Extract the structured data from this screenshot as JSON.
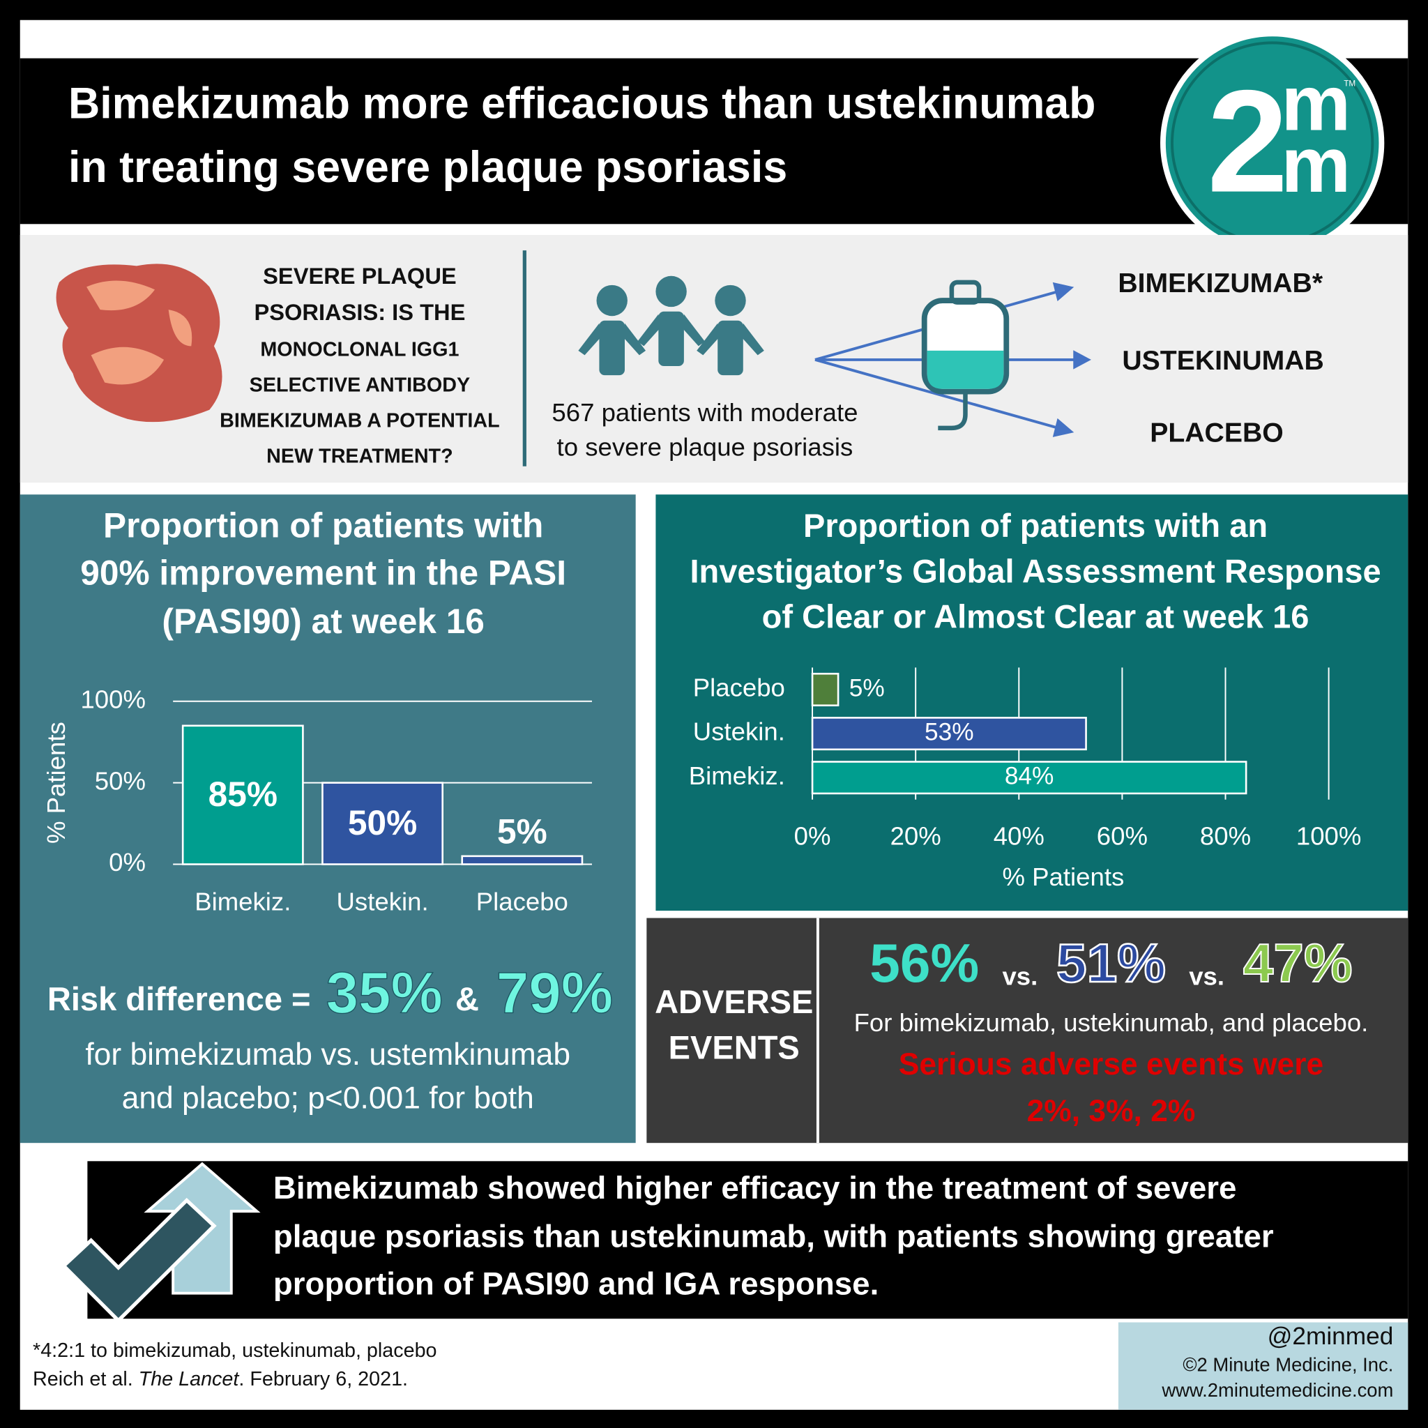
{
  "header": {
    "title_lines": [
      "Bimekizumab more efficacious than ustekinumab",
      "in treating severe plaque psoriasis"
    ],
    "logo": {
      "digit": "2",
      "top": "m",
      "bottom": "m",
      "mark": "TM"
    }
  },
  "intro": {
    "question_lines": [
      "SEVERE PLAQUE",
      "PSORIASIS: IS THE",
      "MONOCLONAL IGG1",
      "SELECTIVE ANTIBODY",
      "BIMEKIZUMAB A POTENTIAL",
      "NEW TREATMENT?"
    ],
    "population_lines": [
      "567 patients with moderate",
      "to severe plaque psoriasis"
    ],
    "arms": [
      "BIMEKIZUMAB*",
      "USTEKINUMAB",
      "PLACEBO"
    ]
  },
  "chart_data": [
    {
      "type": "bar",
      "orientation": "vertical",
      "title_lines": [
        "Proportion of patients with",
        "90% improvement in the PASI",
        "(PASI90) at week 16"
      ],
      "categories": [
        "Bimekiz.",
        "Ustekin.",
        "Placebo"
      ],
      "values": [
        85,
        50,
        5
      ],
      "value_labels": [
        "85%",
        "50%",
        "5%"
      ],
      "colors": [
        "#009e8f",
        "#2f54a0",
        "#2f54a0"
      ],
      "ylabel": "% Patients",
      "ylim": [
        0,
        100
      ],
      "yticks": [
        {
          "value": 0,
          "label": "0%"
        },
        {
          "value": 50,
          "label": "50%"
        },
        {
          "value": 100,
          "label": "100%"
        }
      ],
      "grid": true
    },
    {
      "type": "bar",
      "orientation": "horizontal",
      "title_lines": [
        "Proportion of patients with an",
        "Investigator’s Global Assessment Response",
        "of Clear or Almost Clear at week 16"
      ],
      "categories": [
        "Placebo",
        "Ustekin.",
        "Bimekiz."
      ],
      "values": [
        5,
        53,
        84
      ],
      "value_labels": [
        "5%",
        "53%",
        "84%"
      ],
      "colors": [
        "#4f7f3a",
        "#2f54a0",
        "#009e8f"
      ],
      "xlabel": "% Patients",
      "xlim": [
        0,
        100
      ],
      "xticks": [
        {
          "value": 0,
          "label": "0%"
        },
        {
          "value": 20,
          "label": "20%"
        },
        {
          "value": 40,
          "label": "40%"
        },
        {
          "value": 60,
          "label": "60%"
        },
        {
          "value": 80,
          "label": "80%"
        },
        {
          "value": 100,
          "label": "100%"
        }
      ],
      "grid": true
    }
  ],
  "risk": {
    "label": "Risk difference =",
    "first": "35%",
    "joiner": "&",
    "second": "79%",
    "note_lines": [
      "for bimekizumab vs. ustemkinumab",
      "and placebo; p<0.001 for both"
    ]
  },
  "adverse": {
    "label_lines": [
      "ADVERSE",
      "EVENTS"
    ],
    "rates": [
      "56%",
      "51%",
      "47%"
    ],
    "separator": "vs.",
    "note": "For bimekizumab, ustekinumab, and placebo.",
    "serious_lines": [
      "Serious adverse events were",
      "2%, 3%, 2%"
    ]
  },
  "conclusion_lines": [
    "Bimekizumab showed higher efficacy in the treatment of severe",
    "plaque psoriasis than ustekinumab, with patients showing greater",
    "proportion of PASI90 and IGA response."
  ],
  "footer": {
    "note": "*4:2:1 to bimekizumab, ustekinumab, placebo",
    "citation": {
      "authors": "Reich et al. ",
      "journal": "The Lancet",
      "date": ". February 6, 2021."
    }
  },
  "credit": [
    "@2minmed",
    "©2 Minute Medicine, Inc.",
    "www.2minutemedicine.com"
  ]
}
